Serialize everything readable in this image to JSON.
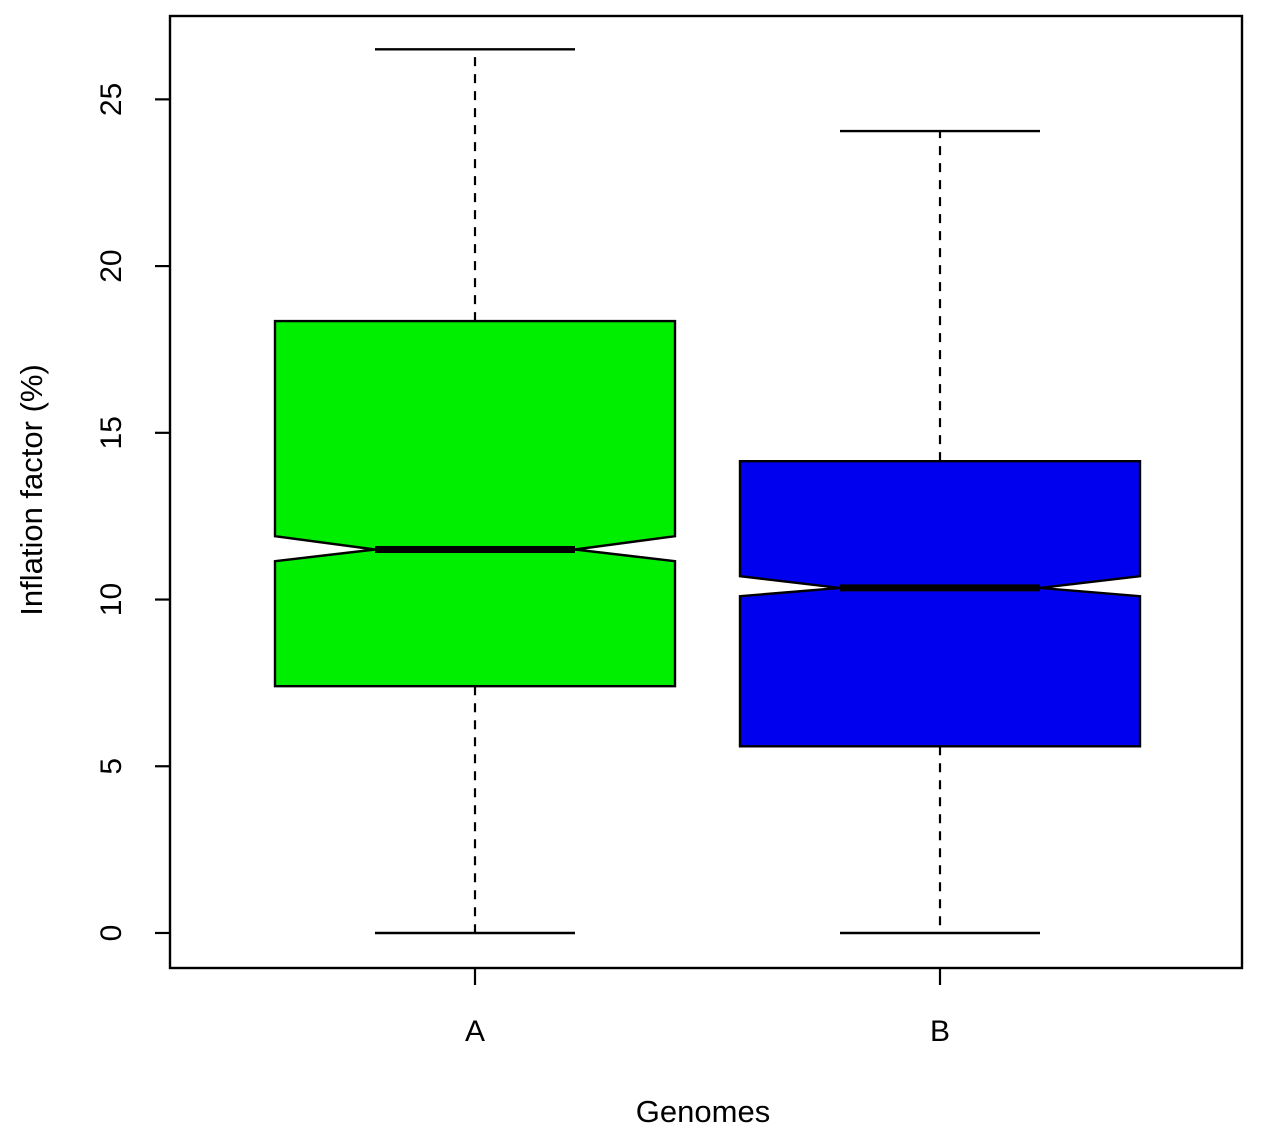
{
  "chart_data": {
    "type": "boxplot",
    "title": "",
    "xlabel": "Genomes",
    "ylabel": "Inflation factor (%)",
    "ylim": [
      -1.05,
      27.5
    ],
    "y_ticks": [
      "0",
      "5",
      "10",
      "15",
      "20",
      "25"
    ],
    "notched": true,
    "grid": false,
    "legend": "none",
    "categories": [
      "A",
      "B"
    ],
    "boxes": [
      {
        "category": "A",
        "color": "#00ee00",
        "whisker_low": 0,
        "q1": 7.4,
        "median": 11.5,
        "q3": 18.35,
        "whisker_high": 26.5,
        "notch_low": 11.15,
        "notch_high": 11.9
      },
      {
        "category": "B",
        "color": "#0000ee",
        "whisker_low": 0,
        "q1": 5.6,
        "median": 10.35,
        "q3": 14.15,
        "whisker_high": 24.05,
        "notch_low": 10.1,
        "notch_high": 10.7
      }
    ]
  }
}
